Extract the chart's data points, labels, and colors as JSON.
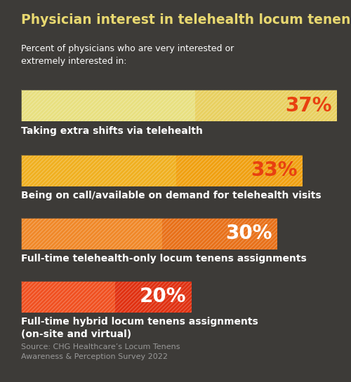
{
  "title": "Physician interest in telehealth locum tenens",
  "subtitle": "Percent of physicians who are very interested or\nextremely interested in:",
  "background_color": "#3d3b38",
  "title_color": "#e8d870",
  "subtitle_color": "#ffffff",
  "source_text": "Source: CHG Healthcare’s Locum Tenens\nAwareness & Perception Survey 2022",
  "source_color": "#999999",
  "bars": [
    {
      "value": 37,
      "max_val": 37,
      "label": "Taking extra shifts via telehealth",
      "bar_color_main": "#e8e080",
      "bar_color_dark": "#e8d060",
      "hatch_color": "#d4c040",
      "pct_color": "#e84010",
      "pct_fontsize": 20,
      "text_color": "#ffffff",
      "text_fontsize": 10
    },
    {
      "value": 33,
      "max_val": 37,
      "label": "Being on call/available on demand for telehealth visits",
      "bar_color_main": "#f0b020",
      "bar_color_dark": "#f0a010",
      "hatch_color": "#d08810",
      "pct_color": "#e84010",
      "pct_fontsize": 20,
      "text_color": "#ffffff",
      "text_fontsize": 10
    },
    {
      "value": 30,
      "max_val": 37,
      "label": "Full-time telehealth-only locum tenens assignments",
      "bar_color_main": "#f08828",
      "bar_color_dark": "#e87018",
      "hatch_color": "#c06010",
      "pct_color": "#ffffff",
      "pct_fontsize": 20,
      "text_color": "#ffffff",
      "text_fontsize": 10
    },
    {
      "value": 20,
      "max_val": 37,
      "label": "Full-time hybrid locum tenens assignments\n(on-site and virtual)",
      "bar_color_main": "#f05020",
      "bar_color_dark": "#e03010",
      "hatch_color": "#c02808",
      "pct_color": "#ffffff",
      "pct_fontsize": 20,
      "text_color": "#ffffff",
      "text_fontsize": 10
    }
  ],
  "figsize": [
    5.0,
    5.45
  ],
  "dpi": 100
}
